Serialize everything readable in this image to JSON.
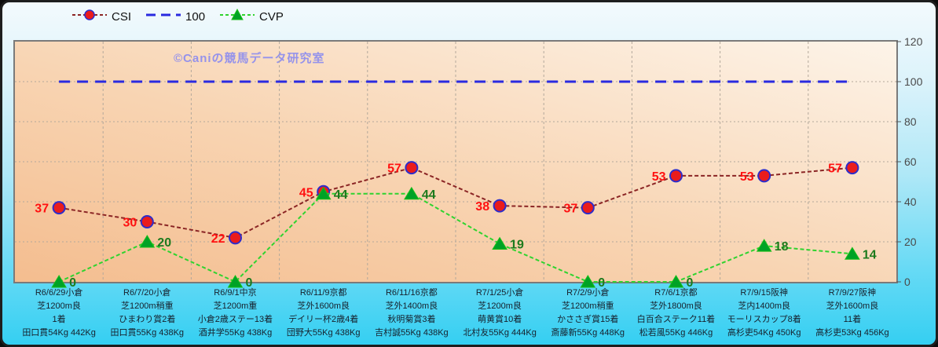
{
  "watermark": "©Caniの競馬データ研究室",
  "legend": {
    "items": [
      "CSI",
      "100",
      "CVP"
    ]
  },
  "chart_data": {
    "type": "line",
    "title": "",
    "xlabel": "",
    "ylabel": "",
    "y_axis": {
      "side": "right",
      "min": 0,
      "max": 120,
      "tick_step": 20,
      "ticks": [
        0,
        20,
        40,
        60,
        80,
        100,
        120
      ]
    },
    "grid": {
      "horizontal": true,
      "vertical": true,
      "color": "#b3a89b"
    },
    "legend_position": "top-left",
    "categories": [
      [
        "R6/6/29小倉",
        "芝1200m良",
        "1着",
        "田口貫54Kg 442Kg"
      ],
      [
        "R6/7/20小倉",
        "芝1200m稍重",
        "ひまわり賞2着",
        "田口貫55Kg 438Kg"
      ],
      [
        "R6/9/1中京",
        "芝1200m重",
        "小倉2歳ステー13着",
        "酒井学55Kg 438Kg"
      ],
      [
        "R6/11/9京都",
        "芝外1600m良",
        "デイリー杯2歳4着",
        "団野大55Kg 438Kg"
      ],
      [
        "R6/11/16京都",
        "芝外1400m良",
        "秋明菊賞3着",
        "吉村誠55Kg 438Kg"
      ],
      [
        "R7/1/25小倉",
        "芝1200m良",
        "萌黄賞10着",
        "北村友55Kg 444Kg"
      ],
      [
        "R7/2/9小倉",
        "芝1200m稍重",
        "かささぎ賞15着",
        "斎藤新55Kg 448Kg"
      ],
      [
        "R7/6/1京都",
        "芝外1800m良",
        "白百合ステーク11着",
        "松若風55Kg 446Kg"
      ],
      [
        "R7/9/15阪神",
        "芝内1400m良",
        "モーリスカップ8着",
        "高杉吏54Kg 450Kg"
      ],
      [
        "R7/9/27阪神",
        "芝外1600m良",
        "11着",
        "高杉吏53Kg 456Kg"
      ]
    ],
    "series": [
      {
        "name": "CSI",
        "values": [
          37,
          30,
          22,
          45,
          57,
          38,
          37,
          53,
          53,
          57
        ],
        "color": "#8b2525",
        "dash": "5 3",
        "line_width": 2,
        "marker": "circle",
        "marker_fill": "#ea1c1c",
        "marker_edge": "#2d2dcb",
        "show_labels": true,
        "label_side": "left",
        "label_color": "#ff1111"
      },
      {
        "name": "100",
        "values": [
          100,
          100,
          100,
          100,
          100,
          100,
          100,
          100,
          100,
          100
        ],
        "color": "#2a2ae0",
        "dash": "14 9",
        "line_width": 3,
        "marker": "none",
        "show_labels": false
      },
      {
        "name": "CVP",
        "values": [
          0,
          20,
          0,
          44,
          44,
          19,
          0,
          0,
          18,
          14
        ],
        "color": "#2fd32f",
        "dash": "5 3",
        "line_width": 2,
        "marker": "triangle",
        "marker_fill": "#00a226",
        "marker_edge": "#18c018",
        "show_labels": true,
        "label_side": "right",
        "label_color": "#1d7a1d"
      }
    ]
  }
}
